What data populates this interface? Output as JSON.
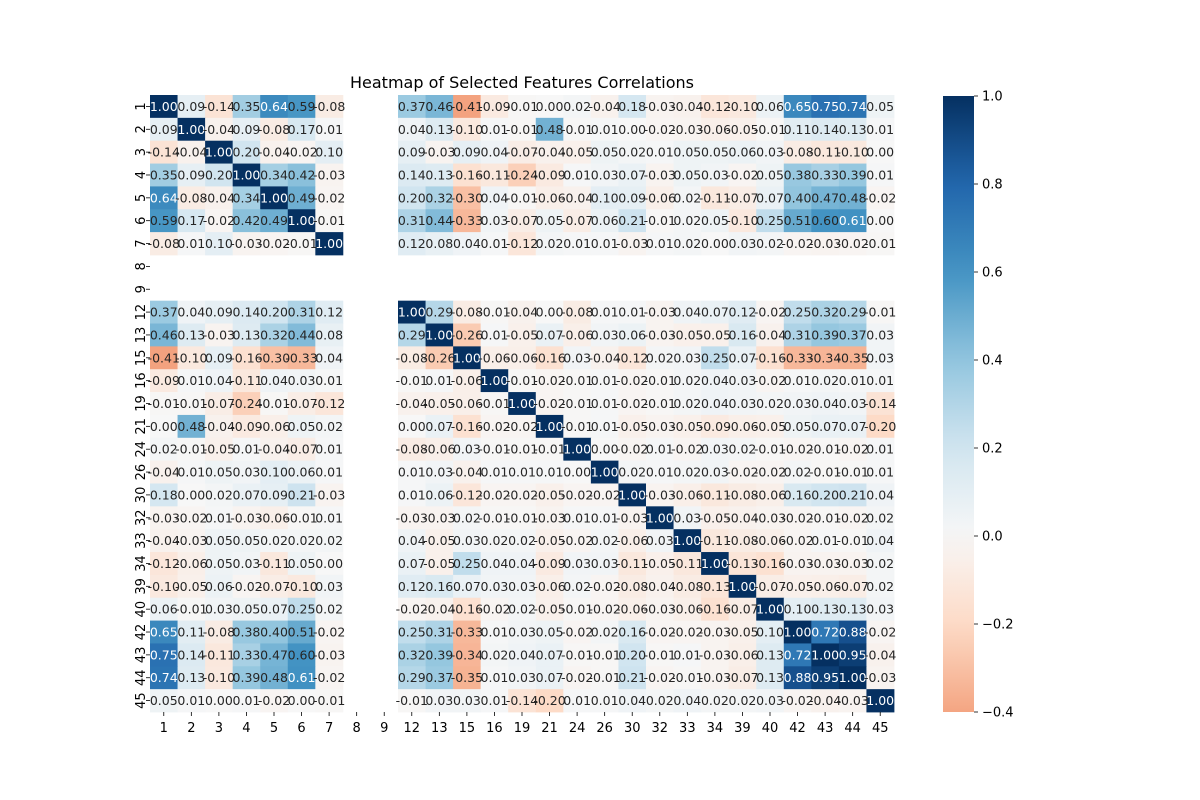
{
  "chart_data": {
    "type": "heatmap",
    "title": "Heatmap of Selected Features Correlations",
    "labels": [
      "1",
      "2",
      "3",
      "4",
      "5",
      "6",
      "7",
      "8",
      "9",
      "12",
      "13",
      "15",
      "16",
      "19",
      "21",
      "24",
      "26",
      "30",
      "32",
      "33",
      "34",
      "39",
      "40",
      "42",
      "43",
      "44",
      "45"
    ],
    "matrix": [
      [
        1.0,
        0.09,
        -0.14,
        0.35,
        0.64,
        0.59,
        -0.08,
        null,
        null,
        0.37,
        0.46,
        -0.41,
        -0.09,
        -0.01,
        0.0,
        0.02,
        -0.04,
        0.18,
        -0.03,
        -0.04,
        -0.12,
        -0.1,
        0.06,
        0.65,
        0.75,
        0.74,
        0.05
      ],
      [
        0.09,
        1.0,
        -0.04,
        0.09,
        -0.08,
        0.17,
        0.01,
        null,
        null,
        0.04,
        0.13,
        -0.1,
        0.01,
        -0.01,
        0.48,
        -0.01,
        0.01,
        0.0,
        -0.02,
        -0.03,
        -0.06,
        -0.05,
        -0.01,
        0.11,
        0.14,
        0.13,
        0.01
      ],
      [
        -0.14,
        -0.04,
        1.0,
        0.2,
        -0.04,
        -0.02,
        0.1,
        null,
        null,
        0.09,
        -0.03,
        0.09,
        0.04,
        -0.07,
        -0.04,
        -0.05,
        0.05,
        0.02,
        0.01,
        0.05,
        0.05,
        0.06,
        0.03,
        -0.08,
        -0.11,
        -0.1,
        0.0
      ],
      [
        0.35,
        0.09,
        0.2,
        1.0,
        0.34,
        0.42,
        -0.03,
        null,
        null,
        0.14,
        0.13,
        -0.16,
        -0.11,
        -0.24,
        -0.09,
        0.01,
        0.03,
        0.07,
        -0.03,
        0.05,
        0.03,
        -0.02,
        0.05,
        0.38,
        0.33,
        0.39,
        0.01
      ],
      [
        0.64,
        -0.08,
        -0.04,
        0.34,
        1.0,
        0.49,
        -0.02,
        null,
        null,
        0.2,
        0.32,
        -0.3,
        0.04,
        -0.01,
        -0.06,
        -0.04,
        0.1,
        0.09,
        -0.06,
        0.02,
        -0.11,
        -0.07,
        0.07,
        0.4,
        0.47,
        0.48,
        -0.02
      ],
      [
        0.59,
        0.17,
        -0.02,
        0.42,
        0.49,
        1.0,
        -0.01,
        null,
        null,
        0.31,
        0.44,
        -0.33,
        0.03,
        -0.07,
        0.05,
        -0.07,
        0.06,
        0.21,
        -0.01,
        0.02,
        0.05,
        -0.1,
        0.25,
        0.51,
        0.6,
        0.61,
        0.0
      ],
      [
        -0.08,
        0.01,
        0.1,
        -0.03,
        -0.02,
        -0.01,
        1.0,
        null,
        null,
        0.12,
        0.08,
        0.04,
        0.01,
        -0.12,
        0.02,
        0.01,
        0.01,
        -0.03,
        0.01,
        0.02,
        0.0,
        0.03,
        0.02,
        -0.02,
        -0.03,
        -0.02,
        -0.01
      ],
      [
        null,
        null,
        null,
        null,
        null,
        null,
        null,
        null,
        null,
        null,
        null,
        null,
        null,
        null,
        null,
        null,
        null,
        null,
        null,
        null,
        null,
        null,
        null,
        null,
        null,
        null,
        null
      ],
      [
        null,
        null,
        null,
        null,
        null,
        null,
        null,
        null,
        null,
        null,
        null,
        null,
        null,
        null,
        null,
        null,
        null,
        null,
        null,
        null,
        null,
        null,
        null,
        null,
        null,
        null,
        null
      ],
      [
        0.37,
        0.04,
        0.09,
        0.14,
        0.2,
        0.31,
        0.12,
        null,
        null,
        1.0,
        0.29,
        -0.08,
        -0.01,
        -0.04,
        0.0,
        -0.08,
        0.01,
        0.01,
        -0.03,
        0.04,
        0.07,
        0.12,
        -0.02,
        0.25,
        0.32,
        0.29,
        -0.01
      ],
      [
        0.46,
        0.13,
        -0.03,
        0.13,
        0.32,
        0.44,
        0.08,
        null,
        null,
        0.29,
        1.0,
        -0.26,
        0.01,
        -0.05,
        0.07,
        -0.06,
        0.03,
        0.06,
        -0.03,
        -0.05,
        -0.05,
        0.16,
        -0.04,
        0.31,
        0.39,
        0.37,
        0.03
      ],
      [
        -0.41,
        -0.1,
        0.09,
        -0.16,
        -0.3,
        -0.33,
        0.04,
        null,
        null,
        -0.08,
        -0.26,
        1.0,
        -0.06,
        -0.06,
        -0.16,
        0.03,
        -0.04,
        -0.12,
        0.02,
        0.03,
        0.25,
        0.07,
        -0.16,
        -0.33,
        -0.34,
        -0.35,
        0.03
      ],
      [
        -0.09,
        0.01,
        0.04,
        -0.11,
        0.04,
        0.03,
        0.01,
        null,
        null,
        -0.01,
        0.01,
        -0.06,
        1.0,
        -0.01,
        -0.02,
        -0.01,
        0.01,
        -0.02,
        -0.01,
        0.02,
        0.04,
        0.03,
        -0.02,
        0.01,
        0.02,
        0.01,
        0.01
      ],
      [
        -0.01,
        -0.01,
        -0.07,
        -0.24,
        -0.01,
        -0.07,
        -0.12,
        null,
        null,
        -0.04,
        -0.05,
        -0.06,
        -0.01,
        1.0,
        -0.02,
        -0.01,
        0.01,
        -0.02,
        -0.01,
        0.02,
        0.04,
        0.03,
        0.02,
        0.03,
        0.04,
        0.03,
        -0.14
      ],
      [
        0.0,
        0.48,
        -0.04,
        -0.09,
        -0.06,
        0.05,
        0.02,
        null,
        null,
        0.0,
        0.07,
        -0.16,
        -0.02,
        -0.02,
        1.0,
        -0.01,
        0.01,
        -0.05,
        -0.03,
        -0.05,
        -0.09,
        -0.06,
        -0.05,
        0.05,
        0.07,
        0.07,
        -0.2
      ],
      [
        0.02,
        -0.01,
        -0.05,
        0.01,
        -0.04,
        -0.07,
        0.01,
        null,
        null,
        -0.08,
        -0.06,
        0.03,
        -0.01,
        -0.01,
        -0.01,
        1.0,
        0.0,
        -0.02,
        0.01,
        -0.02,
        0.03,
        0.02,
        -0.01,
        -0.02,
        -0.01,
        -0.02,
        0.01
      ],
      [
        -0.04,
        0.01,
        0.05,
        0.03,
        0.1,
        0.06,
        0.01,
        null,
        null,
        0.01,
        0.03,
        -0.04,
        0.01,
        0.01,
        0.01,
        0.0,
        1.0,
        0.02,
        0.01,
        0.02,
        0.03,
        -0.02,
        -0.02,
        0.02,
        -0.01,
        -0.01,
        0.01
      ],
      [
        0.18,
        0.0,
        0.02,
        0.07,
        0.09,
        0.21,
        -0.03,
        null,
        null,
        0.01,
        0.06,
        -0.12,
        -0.02,
        -0.02,
        -0.05,
        -0.02,
        -0.02,
        1.0,
        -0.03,
        -0.06,
        -0.11,
        -0.08,
        -0.06,
        0.16,
        0.2,
        0.21,
        0.04
      ],
      [
        -0.03,
        -0.02,
        0.01,
        -0.03,
        -0.06,
        -0.01,
        0.01,
        null,
        null,
        -0.03,
        -0.03,
        0.02,
        -0.01,
        -0.01,
        -0.03,
        0.01,
        0.01,
        -0.03,
        1.0,
        0.03,
        -0.05,
        -0.04,
        -0.03,
        -0.02,
        -0.01,
        -0.02,
        0.02
      ],
      [
        -0.04,
        -0.03,
        0.05,
        0.05,
        0.02,
        0.02,
        0.02,
        null,
        null,
        0.04,
        -0.05,
        0.03,
        0.02,
        0.02,
        -0.05,
        -0.02,
        0.02,
        -0.06,
        0.03,
        1.0,
        -0.11,
        -0.08,
        -0.06,
        -0.02,
        0.01,
        -0.01,
        0.04
      ],
      [
        -0.12,
        -0.06,
        0.05,
        0.03,
        -0.11,
        0.05,
        0.0,
        null,
        null,
        0.07,
        -0.05,
        0.25,
        0.04,
        0.04,
        -0.09,
        0.03,
        0.03,
        -0.11,
        -0.05,
        -0.11,
        1.0,
        -0.13,
        -0.16,
        -0.03,
        -0.03,
        -0.03,
        0.02
      ],
      [
        -0.1,
        -0.05,
        0.06,
        -0.02,
        -0.07,
        -0.1,
        0.03,
        null,
        null,
        0.12,
        0.16,
        0.07,
        0.03,
        0.03,
        -0.06,
        0.02,
        -0.02,
        -0.08,
        -0.04,
        -0.08,
        -0.13,
        1.0,
        -0.07,
        -0.05,
        -0.06,
        -0.07,
        0.02
      ],
      [
        0.06,
        -0.01,
        0.03,
        0.05,
        0.07,
        0.25,
        0.02,
        null,
        null,
        -0.02,
        -0.04,
        -0.16,
        -0.02,
        0.02,
        -0.05,
        -0.01,
        -0.02,
        -0.06,
        -0.03,
        -0.06,
        -0.16,
        -0.07,
        1.0,
        0.1,
        0.13,
        0.13,
        0.03
      ],
      [
        0.65,
        0.11,
        -0.08,
        0.38,
        0.4,
        0.51,
        -0.02,
        null,
        null,
        0.25,
        0.31,
        -0.33,
        0.01,
        0.03,
        0.05,
        -0.02,
        0.02,
        0.16,
        -0.02,
        -0.02,
        -0.03,
        -0.05,
        0.1,
        1.0,
        0.72,
        0.88,
        -0.02
      ],
      [
        0.75,
        0.14,
        -0.11,
        0.33,
        0.47,
        0.6,
        -0.03,
        null,
        null,
        0.32,
        0.39,
        -0.34,
        0.02,
        0.04,
        0.07,
        -0.01,
        -0.01,
        0.2,
        -0.01,
        0.01,
        -0.03,
        -0.06,
        0.13,
        0.72,
        1.0,
        0.95,
        -0.04
      ],
      [
        0.74,
        0.13,
        -0.1,
        0.39,
        0.48,
        0.61,
        -0.02,
        null,
        null,
        0.29,
        0.37,
        -0.35,
        0.01,
        0.03,
        0.07,
        -0.02,
        -0.01,
        0.21,
        -0.02,
        -0.01,
        -0.03,
        -0.07,
        0.13,
        0.88,
        0.95,
        1.0,
        -0.03
      ],
      [
        0.05,
        0.01,
        0.0,
        0.01,
        -0.02,
        0.0,
        -0.01,
        null,
        null,
        -0.01,
        0.03,
        0.03,
        0.01,
        -0.14,
        -0.2,
        0.01,
        0.01,
        0.04,
        0.02,
        0.04,
        0.02,
        0.02,
        0.03,
        -0.02,
        -0.04,
        -0.03,
        1.0
      ]
    ],
    "colorbar": {
      "min": -0.4,
      "max": 1.0,
      "center": 0.0,
      "ticks": [
        "−0.4",
        "−0.2",
        "0.0",
        "0.2",
        "0.4",
        "0.6",
        "0.8",
        "1.0"
      ],
      "tick_values": [
        -0.4,
        -0.2,
        0.0,
        0.2,
        0.4,
        0.6,
        0.8,
        1.0
      ],
      "colormap": "RdBu"
    },
    "annotations": "values with 2 decimals in each cell",
    "grid": false,
    "legend": "colorbar-right"
  }
}
